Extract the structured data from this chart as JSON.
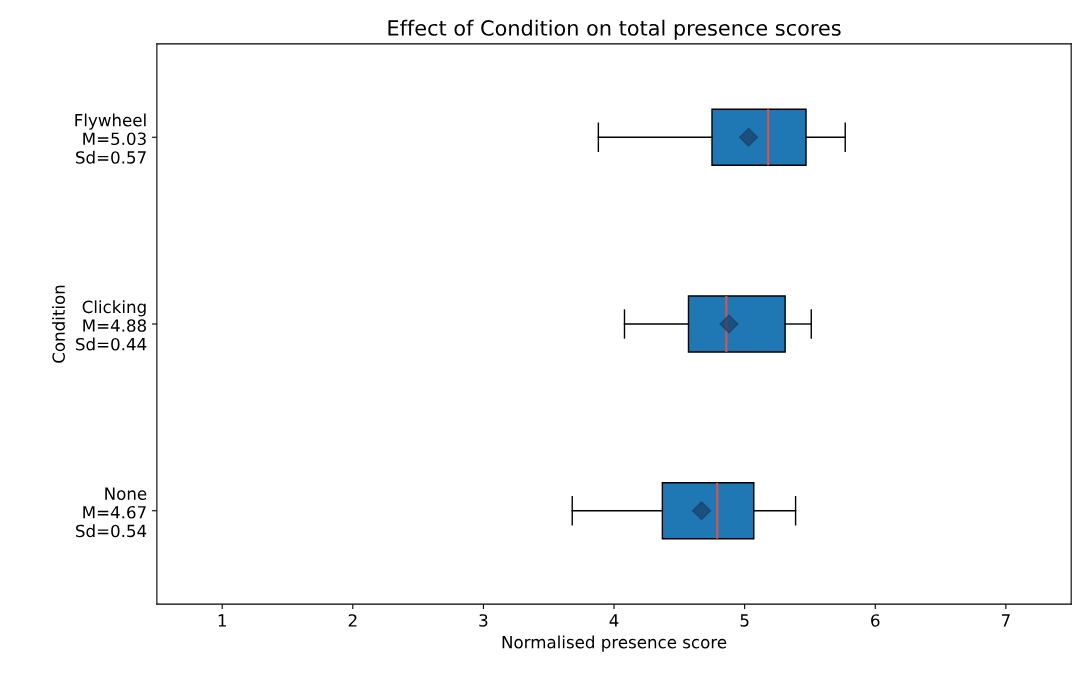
{
  "chart_data": {
    "type": "box",
    "orientation": "horizontal",
    "title": "Effect of Condition on total presence scores",
    "xlabel": "Normalised presence score",
    "ylabel": "Condition",
    "categories": [
      "Flywheel\nM=5.03\nSd=0.57",
      "Clicking\nM=4.88\nSd=0.44",
      "None\nM=4.67\nSd=0.54"
    ],
    "color": "#1f77b4",
    "marker": "diamond",
    "boxes": [
      {
        "low": 3.88,
        "q1": 4.75,
        "median": 5.18,
        "q3": 5.47,
        "high": 5.77,
        "mean": 5.03
      },
      {
        "low": 4.08,
        "q1": 4.57,
        "median": 4.86,
        "q3": 5.31,
        "high": 5.51,
        "mean": 4.88
      },
      {
        "low": 3.68,
        "q1": 4.37,
        "median": 4.79,
        "q3": 5.07,
        "high": 5.39,
        "mean": 4.67
      }
    ],
    "xlim": [
      0.5,
      7.5
    ],
    "xticks": [
      1,
      2,
      3,
      4,
      5,
      6,
      7
    ],
    "grid": false
  }
}
